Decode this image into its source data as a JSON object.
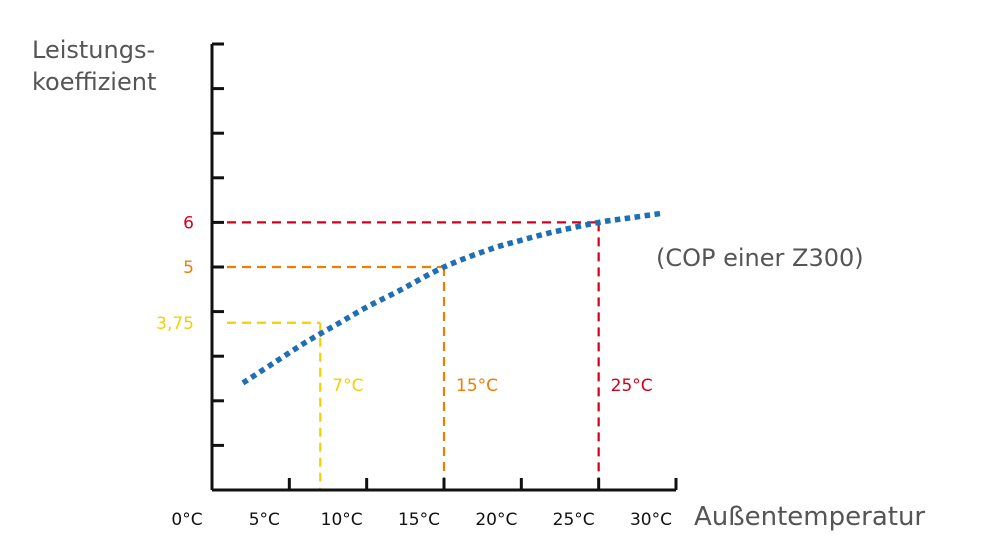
{
  "chart_data": {
    "type": "line",
    "ylabel_lines": [
      "Leistungs-",
      "koeffizient"
    ],
    "xlabel": "Außentemperatur",
    "annotation": "(COP einer Z300)",
    "x_ticks": [
      "0°C",
      "5°C",
      "10°C",
      "15°C",
      "20°C",
      "25°C",
      "30°C"
    ],
    "x_tick_values": [
      0,
      5,
      10,
      15,
      20,
      25,
      30
    ],
    "xlim": [
      0,
      30
    ],
    "ylim": [
      0,
      10
    ],
    "y_tick_values": [
      1,
      2,
      3,
      4,
      5,
      6,
      7,
      8,
      9,
      10
    ],
    "grid": false,
    "legend": "none",
    "series": [
      {
        "color": "#1f6fb5",
        "style": "dotted",
        "x": [
          2,
          4,
          6,
          8,
          10,
          12,
          15,
          18,
          20,
          22,
          25,
          27,
          29
        ],
        "y": [
          2.4,
          2.85,
          3.3,
          3.7,
          4.1,
          4.45,
          5.0,
          5.4,
          5.6,
          5.78,
          6.0,
          6.1,
          6.2
        ]
      }
    ],
    "markers": [
      {
        "x": 7,
        "y": 3.75,
        "y_label": "3,75",
        "x_label": "7°C",
        "color": "#f5d000"
      },
      {
        "x": 15,
        "y": 5,
        "y_label": "5",
        "x_label": "15°C",
        "color": "#ef7d00"
      },
      {
        "x": 25,
        "y": 6,
        "y_label": "6",
        "x_label": "25°C",
        "color": "#d0021b"
      }
    ]
  }
}
